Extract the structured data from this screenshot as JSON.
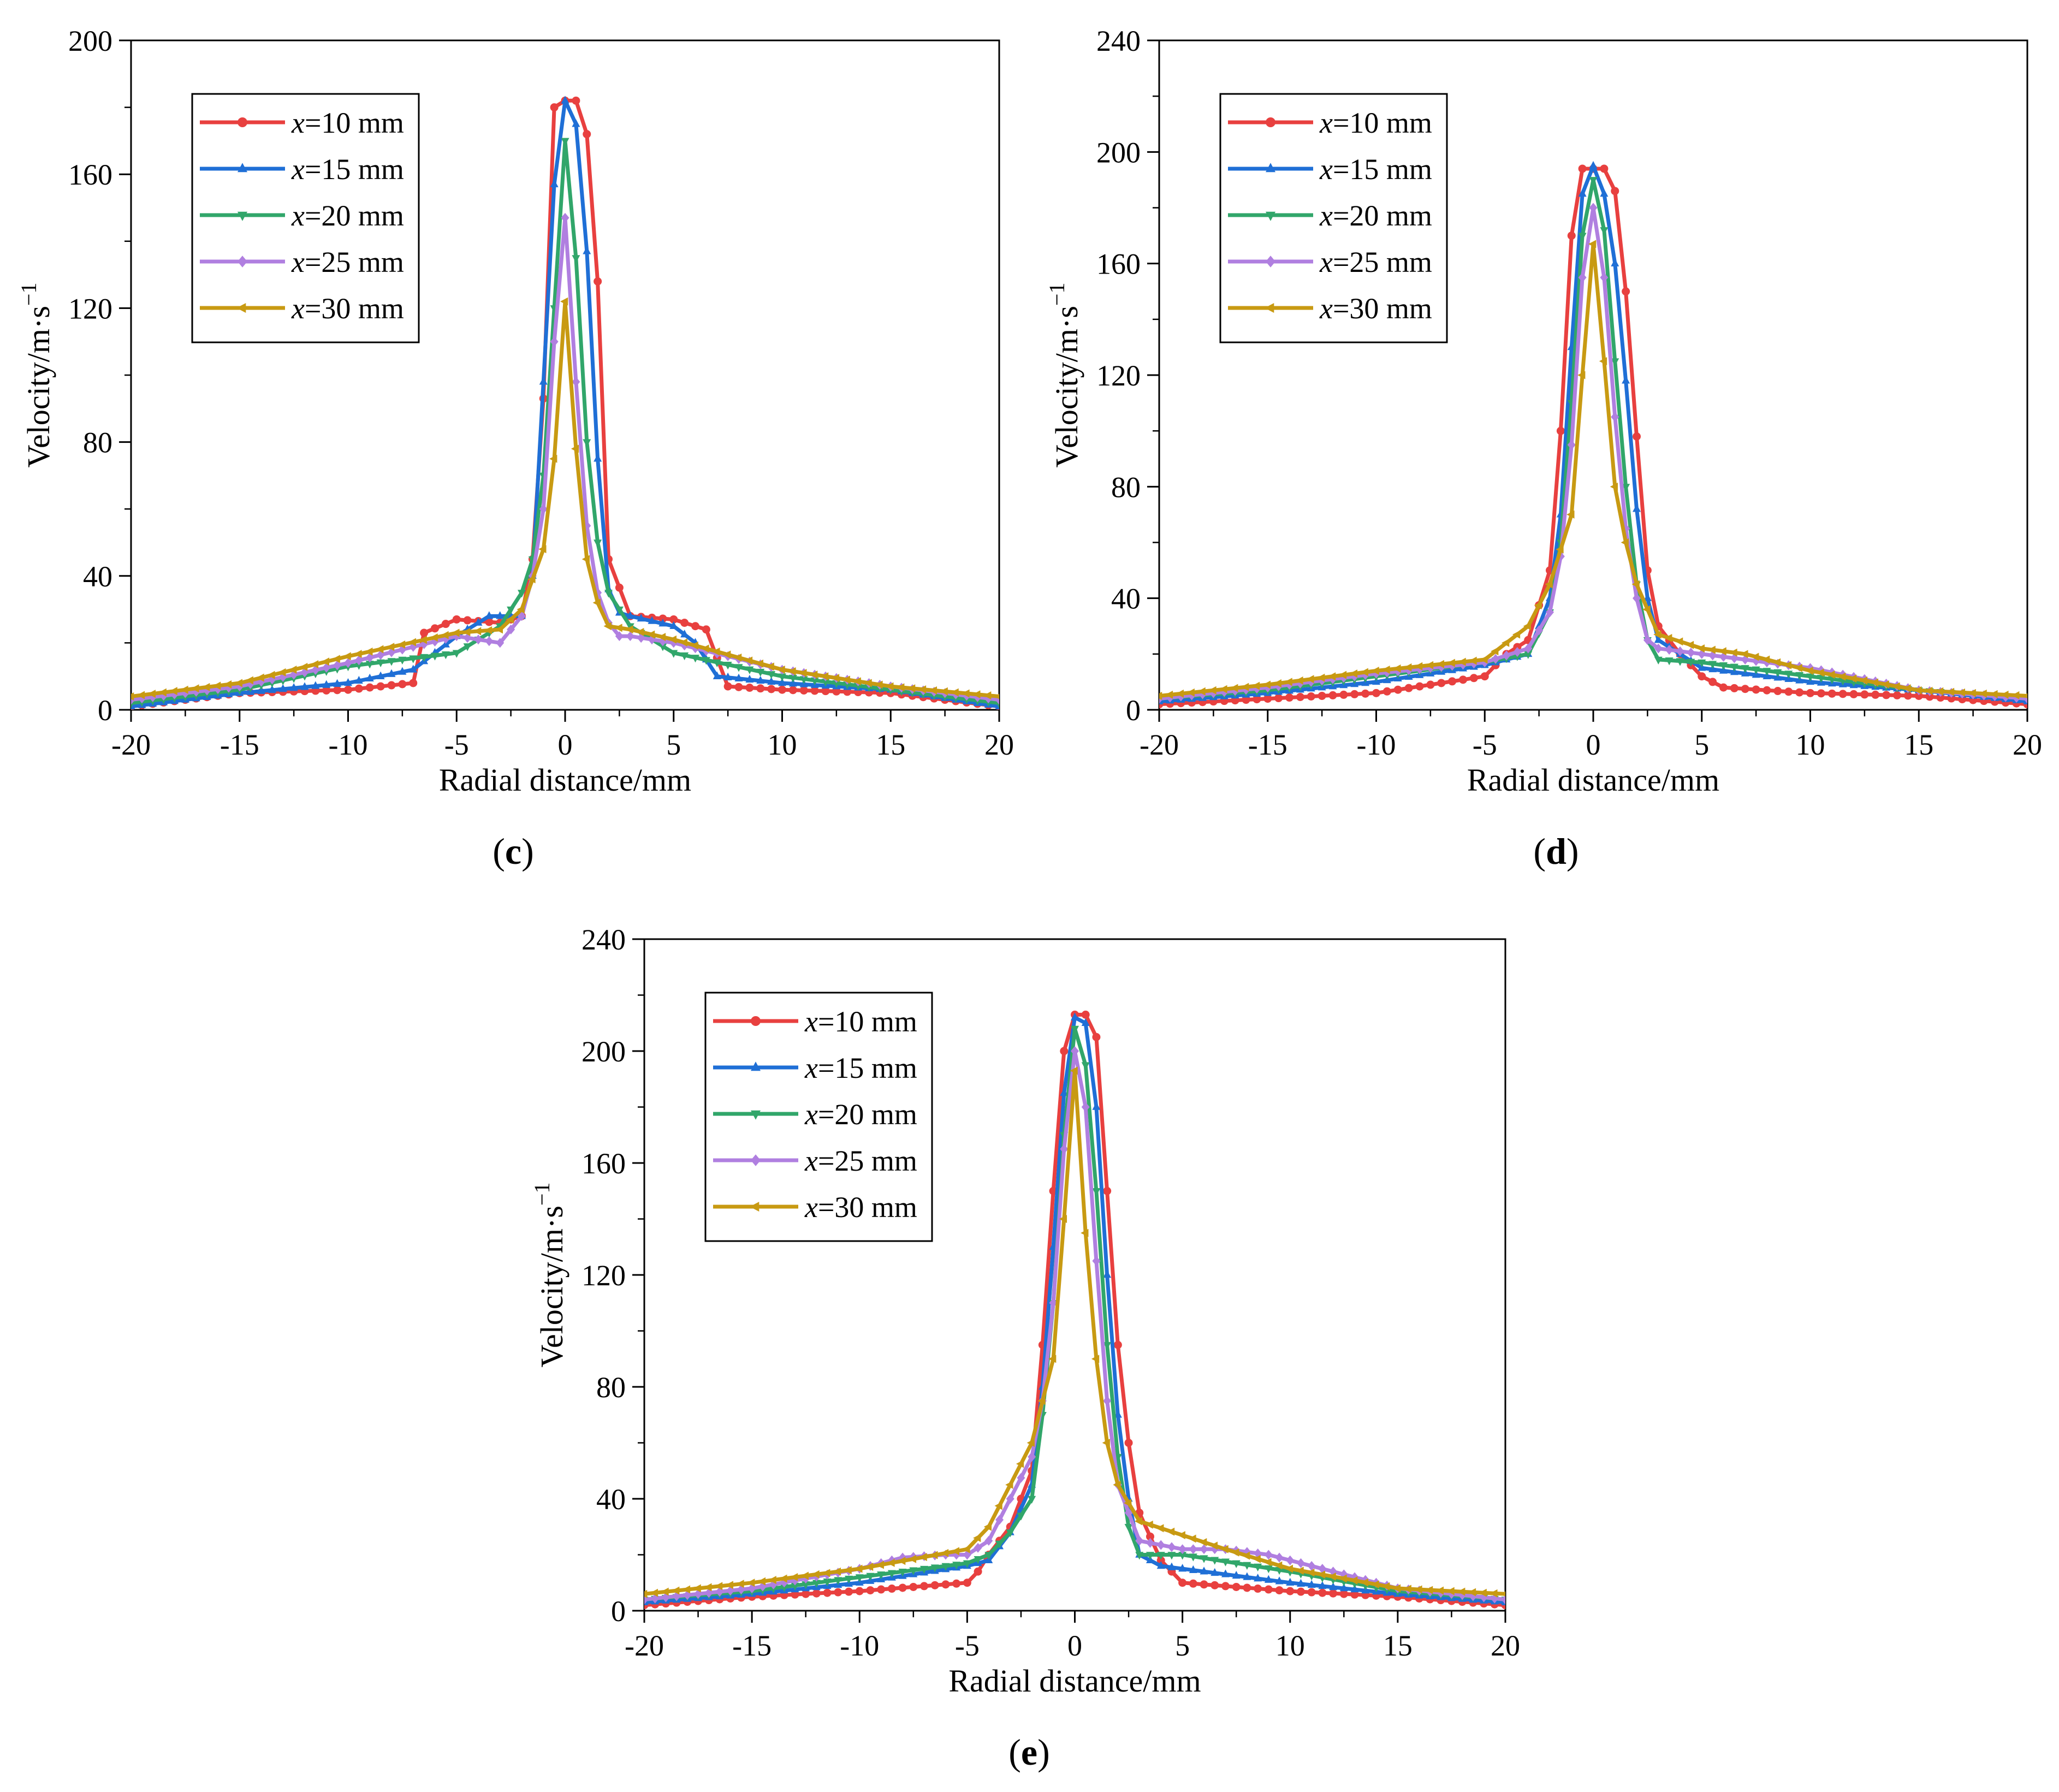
{
  "figure": {
    "series_styles": [
      {
        "name": "x=10 mm",
        "prefix": "x",
        "suffix": "=10 mm",
        "color": "#e8403f",
        "marker": "circle"
      },
      {
        "name": "x=15 mm",
        "prefix": "x",
        "suffix": "=15 mm",
        "color": "#1f6fd6",
        "marker": "triangle-up"
      },
      {
        "name": "x=20 mm",
        "prefix": "x",
        "suffix": "=20 mm",
        "color": "#31a66a",
        "marker": "triangle-down"
      },
      {
        "name": "x=25 mm",
        "prefix": "x",
        "suffix": "=25 mm",
        "color": "#b07fe0",
        "marker": "diamond"
      },
      {
        "name": "x=30 mm",
        "prefix": "x",
        "suffix": "=30 mm",
        "color": "#c89a12",
        "marker": "triangle-left"
      }
    ]
  },
  "chart_data": [
    {
      "panel": "c",
      "caption": "c",
      "type": "line",
      "xlabel": "Radial distance/mm",
      "ylabel": "Velocity/m·s",
      "ylabel_superscript": "−1",
      "xlim": [
        -20,
        20
      ],
      "ylim": [
        0,
        200
      ],
      "xticks": [
        -20,
        -15,
        -10,
        -5,
        0,
        5,
        10,
        15,
        20
      ],
      "xtick_labels": [
        "-20",
        "-15",
        "-10",
        "-5",
        "0",
        "5",
        "10",
        "15",
        "20"
      ],
      "yticks": [
        0,
        40,
        80,
        120,
        160,
        200
      ],
      "ytick_labels": [
        "0",
        "40",
        "80",
        "120",
        "160",
        "200"
      ],
      "legend": "top-left",
      "series": [
        {
          "name": "x=10 mm",
          "x": [
            -20,
            -15,
            -10,
            -7,
            -6.5,
            -5,
            -3,
            -2,
            -1.5,
            -1,
            -0.5,
            0,
            0.5,
            1,
            1.5,
            2,
            3,
            5,
            6.5,
            7.5,
            10,
            15,
            20
          ],
          "values": [
            1,
            5,
            6,
            8,
            23,
            27,
            26,
            28,
            45,
            93,
            180,
            182,
            182,
            172,
            128,
            45,
            28,
            27,
            24,
            7,
            6,
            5,
            1
          ]
        },
        {
          "name": "x=15 mm",
          "x": [
            -20,
            -15,
            -10,
            -7,
            -5,
            -3.5,
            -2,
            -1.5,
            -1,
            -0.5,
            0,
            0.5,
            1,
            1.5,
            2,
            2.5,
            3,
            5,
            6,
            7,
            10,
            15,
            20
          ],
          "values": [
            1,
            5,
            8,
            12,
            22,
            28,
            28,
            40,
            98,
            157,
            182,
            175,
            137,
            75,
            36,
            29,
            28,
            25,
            20,
            10,
            8,
            6,
            1
          ]
        },
        {
          "name": "x=20 mm",
          "x": [
            -20,
            -15,
            -10,
            -5,
            -3,
            -2,
            -1.5,
            -1,
            -0.5,
            0,
            0.5,
            1,
            1.5,
            2,
            3,
            5,
            10,
            15,
            20
          ],
          "values": [
            2,
            6,
            13,
            17,
            25,
            35,
            45,
            70,
            120,
            170,
            135,
            80,
            50,
            35,
            25,
            17,
            10,
            6,
            2
          ]
        },
        {
          "name": "x=25 mm",
          "x": [
            -20,
            -15,
            -10,
            -5,
            -3,
            -2,
            -1.5,
            -1,
            -0.5,
            0,
            0.5,
            1,
            1.5,
            2,
            2.5,
            3,
            5,
            10,
            15,
            20
          ],
          "values": [
            3,
            7,
            14,
            22,
            20,
            28,
            40,
            60,
            110,
            147,
            98,
            55,
            35,
            26,
            22,
            22,
            20,
            12,
            7,
            3
          ]
        },
        {
          "name": "x=30 mm",
          "x": [
            -20,
            -15,
            -10,
            -5,
            -3,
            -2,
            -1,
            -0.5,
            0,
            0.5,
            1,
            1.5,
            2,
            3,
            5,
            10,
            15,
            20
          ],
          "values": [
            4,
            8,
            16,
            23,
            24,
            30,
            48,
            75,
            122,
            78,
            45,
            32,
            25,
            24,
            21,
            12,
            7,
            4
          ]
        }
      ]
    },
    {
      "panel": "d",
      "caption": "d",
      "type": "line",
      "xlabel": "Radial distance/mm",
      "ylabel": "Velocity/m·s",
      "ylabel_superscript": "−1",
      "xlim": [
        -20,
        20
      ],
      "ylim": [
        0,
        240
      ],
      "xticks": [
        -20,
        -15,
        -10,
        -5,
        0,
        5,
        10,
        15,
        20
      ],
      "xtick_labels": [
        "-20",
        "-15",
        "-10",
        "-5",
        "0",
        "5",
        "10",
        "15",
        "20"
      ],
      "yticks": [
        0,
        40,
        80,
        120,
        160,
        200,
        240
      ],
      "ytick_labels": [
        "0",
        "40",
        "80",
        "120",
        "160",
        "200",
        "240"
      ],
      "legend": "top-left",
      "series": [
        {
          "name": "x=10 mm",
          "x": [
            -20,
            -15,
            -10,
            -5,
            -4,
            -3,
            -2,
            -1.5,
            -1,
            -0.5,
            0,
            0.5,
            1,
            1.5,
            2,
            2.5,
            3,
            4,
            5,
            6,
            10,
            15,
            20
          ],
          "values": [
            2,
            4,
            6,
            12,
            20,
            25,
            50,
            100,
            170,
            194,
            194,
            194,
            186,
            150,
            98,
            50,
            30,
            20,
            12,
            8,
            6,
            5,
            2
          ]
        },
        {
          "name": "x=15 mm",
          "x": [
            -20,
            -15,
            -10,
            -5,
            -3,
            -2,
            -1.5,
            -1,
            -0.5,
            0,
            0.5,
            1,
            1.5,
            2,
            2.5,
            3,
            5,
            10,
            15,
            20
          ],
          "values": [
            3,
            6,
            10,
            16,
            20,
            40,
            70,
            130,
            185,
            195,
            185,
            160,
            118,
            72,
            40,
            25,
            15,
            10,
            7,
            3
          ]
        },
        {
          "name": "x=20 mm",
          "x": [
            -20,
            -15,
            -10,
            -5,
            -3,
            -2,
            -1.5,
            -1,
            -0.5,
            0,
            0.5,
            1,
            1.5,
            2,
            2.5,
            3,
            5,
            10,
            15,
            20
          ],
          "values": [
            4,
            7,
            12,
            17,
            20,
            35,
            60,
            110,
            170,
            190,
            172,
            125,
            80,
            45,
            25,
            18,
            17,
            12,
            7,
            4
          ]
        },
        {
          "name": "x=25 mm",
          "x": [
            -20,
            -15,
            -10,
            -5,
            -3,
            -2,
            -1.5,
            -1,
            -0.5,
            0,
            0.5,
            1,
            1.5,
            2,
            2.5,
            3,
            5,
            10,
            15,
            20
          ],
          "values": [
            4,
            8,
            13,
            17,
            22,
            35,
            55,
            95,
            155,
            180,
            155,
            105,
            65,
            40,
            25,
            22,
            20,
            15,
            7,
            4
          ]
        },
        {
          "name": "x=30 mm",
          "x": [
            -20,
            -15,
            -10,
            -5,
            -3,
            -2,
            -1,
            -0.5,
            0,
            0.5,
            1,
            1.5,
            2,
            3,
            5,
            7,
            10,
            15,
            20
          ],
          "values": [
            5,
            9,
            14,
            18,
            30,
            45,
            70,
            120,
            167,
            125,
            80,
            60,
            45,
            27,
            22,
            20,
            14,
            7,
            5
          ]
        }
      ]
    },
    {
      "panel": "e",
      "caption": "e",
      "type": "line",
      "xlabel": "Radial distance/mm",
      "ylabel": "Velocity/m·s",
      "ylabel_superscript": "−1",
      "xlim": [
        -20,
        20
      ],
      "ylim": [
        0,
        240
      ],
      "xticks": [
        -20,
        -15,
        -10,
        -5,
        0,
        5,
        10,
        15,
        20
      ],
      "xtick_labels": [
        "-20",
        "-15",
        "-10",
        "-5",
        "0",
        "5",
        "10",
        "15",
        "20"
      ],
      "yticks": [
        0,
        40,
        80,
        120,
        160,
        200,
        240
      ],
      "ytick_labels": [
        "0",
        "40",
        "80",
        "120",
        "160",
        "200",
        "240"
      ],
      "legend": "top-left",
      "series": [
        {
          "name": "x=10 mm",
          "x": [
            -20,
            -15,
            -10,
            -5,
            -4.5,
            -4,
            -3,
            -2,
            -1.5,
            -1,
            -0.5,
            0,
            0.5,
            1,
            1.5,
            2,
            2.5,
            3,
            4,
            5,
            10,
            15,
            20
          ],
          "values": [
            2,
            5,
            7,
            10,
            14,
            20,
            30,
            50,
            95,
            150,
            200,
            213,
            213,
            205,
            150,
            95,
            60,
            35,
            18,
            10,
            7,
            5,
            2
          ]
        },
        {
          "name": "x=15 mm",
          "x": [
            -20,
            -15,
            -10,
            -5,
            -4,
            -3,
            -2,
            -1.5,
            -1,
            -0.5,
            0,
            0.5,
            1,
            1.5,
            2,
            2.5,
            3,
            4,
            5,
            10,
            15,
            20
          ],
          "values": [
            3,
            6,
            10,
            16,
            18,
            28,
            45,
            80,
            130,
            185,
            212,
            210,
            180,
            120,
            70,
            40,
            20,
            16,
            15,
            10,
            6,
            3
          ]
        },
        {
          "name": "x=20 mm",
          "x": [
            -20,
            -15,
            -10,
            -5,
            -4,
            -3,
            -2,
            -1.5,
            -1,
            -0.5,
            0,
            0.5,
            1,
            1.5,
            2,
            2.5,
            3,
            5,
            10,
            15,
            20
          ],
          "values": [
            4,
            7,
            12,
            17,
            20,
            28,
            40,
            70,
            110,
            170,
            208,
            195,
            150,
            95,
            55,
            30,
            20,
            20,
            14,
            7,
            4
          ]
        },
        {
          "name": "x=25 mm",
          "x": [
            -20,
            -15,
            -10,
            -8,
            -6,
            -5,
            -4,
            -3,
            -2,
            -1.5,
            -1,
            -0.5,
            0,
            0.5,
            1,
            1.5,
            2,
            3,
            5,
            7,
            9,
            10,
            15,
            20
          ],
          "values": [
            4,
            8,
            15,
            19,
            20,
            20,
            25,
            40,
            55,
            75,
            110,
            165,
            200,
            180,
            125,
            75,
            45,
            25,
            22,
            22,
            20,
            18,
            8,
            4
          ]
        },
        {
          "name": "x=30 mm",
          "x": [
            -20,
            -15,
            -10,
            -5,
            -4,
            -3,
            -2,
            -1,
            -0.5,
            0,
            0.5,
            1,
            1.5,
            2,
            3,
            5,
            7,
            10,
            15,
            20
          ],
          "values": [
            6,
            10,
            15,
            22,
            30,
            45,
            60,
            90,
            140,
            193,
            135,
            90,
            60,
            45,
            32,
            27,
            22,
            15,
            8,
            6
          ]
        }
      ]
    }
  ]
}
